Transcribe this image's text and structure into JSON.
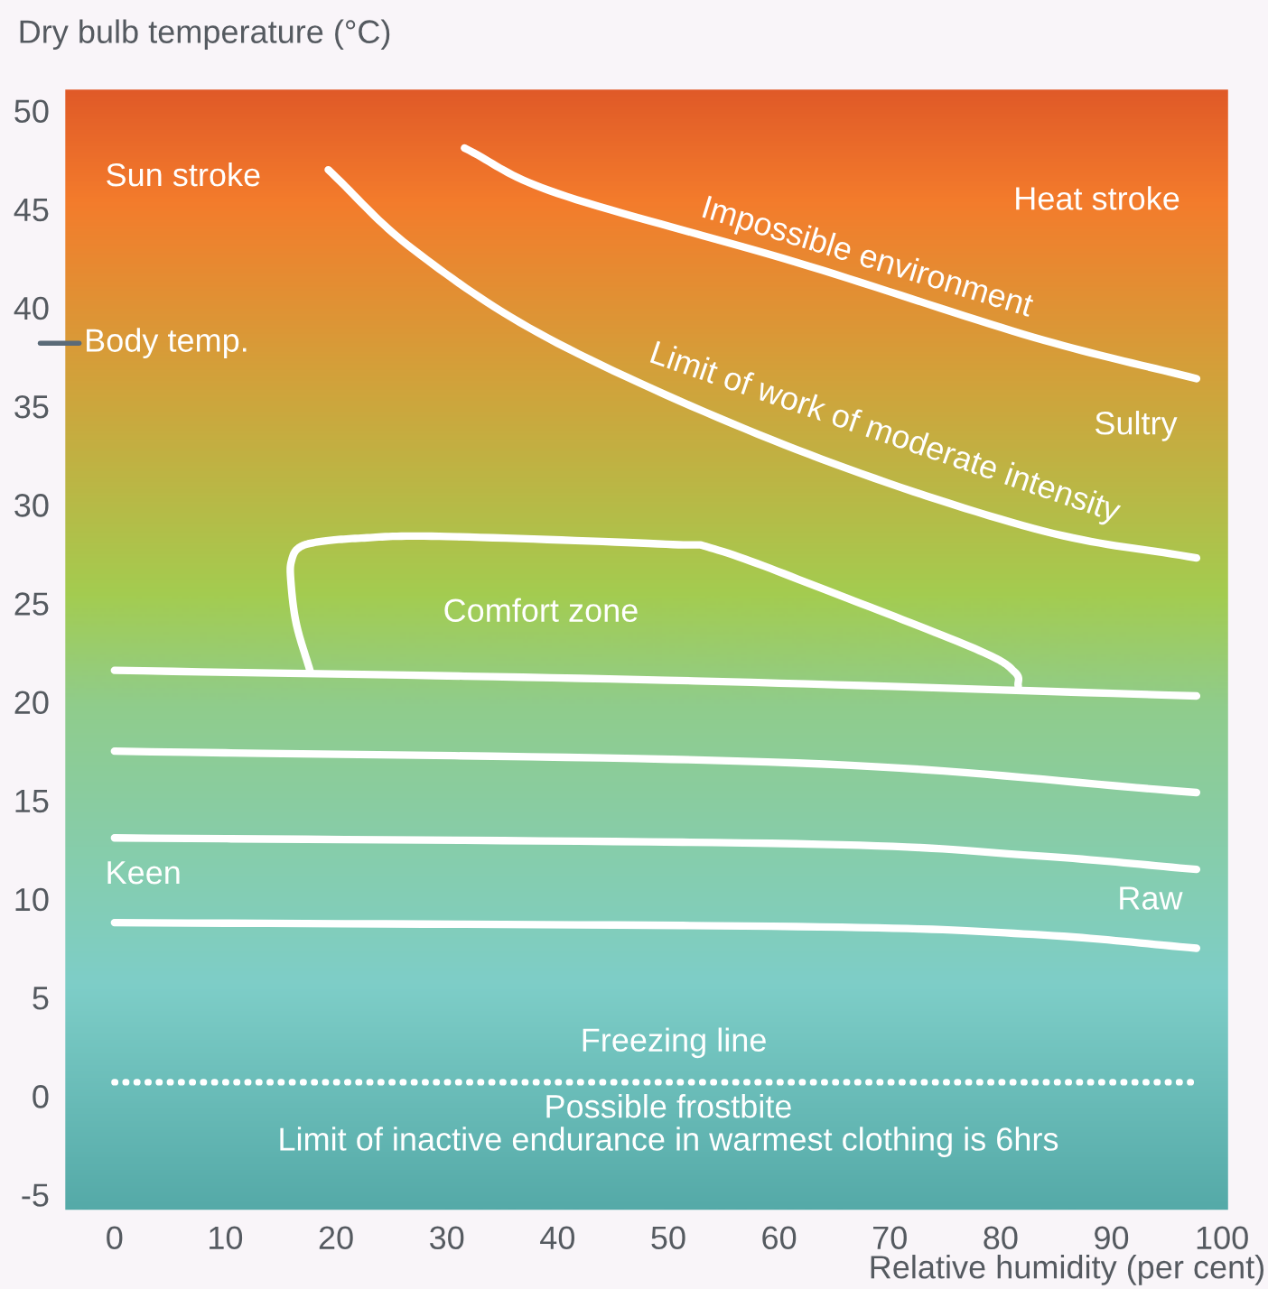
{
  "chart_data": {
    "type": "line",
    "xlabel": "Relative humidity (per cent)",
    "ylabel": "Dry bulb temperature (°C)",
    "xlim": [
      -4.5,
      100.6
    ],
    "ylim": [
      -5.8,
      51.1
    ],
    "xticks": [
      0,
      10,
      20,
      30,
      40,
      50,
      60,
      70,
      80,
      90,
      100
    ],
    "yticks": [
      -5,
      0,
      5,
      10,
      15,
      20,
      25,
      30,
      35,
      40,
      45,
      50
    ],
    "grid": false,
    "marker": "none",
    "series": [
      {
        "color": "#ffffff",
        "x": [
          31.6,
          40,
          61.6,
          83.0,
          97.7
        ],
        "values": [
          48.1,
          45.8,
          42.3,
          38.5,
          36.4
        ]
      },
      {
        "color": "#ffffff",
        "x": [
          19.3,
          27.1,
          40,
          61.6,
          83.0,
          97.7
        ],
        "values": [
          47.0,
          42.9,
          38.2,
          32.8,
          28.8,
          27.3
        ]
      },
      {
        "color": "#ffffff",
        "x": [
          17.7,
          16.4,
          15.9,
          16.0,
          16.6,
          18.2,
          22.0,
          29.3,
          49.8,
          54.5,
          65.5,
          78.1,
          81.3,
          81.6
        ],
        "values": [
          21.5,
          24.0,
          26.3,
          27.2,
          27.8,
          28.1,
          28.3,
          28.4,
          28.0,
          27.7,
          25.4,
          22.6,
          21.5,
          20.8
        ]
      },
      {
        "color": "#ffffff",
        "x": [
          0,
          49.8,
          97.7
        ],
        "values": [
          21.6,
          21.1,
          20.3
        ]
      },
      {
        "color": "#ffffff",
        "x": [
          0,
          61.6,
          97.7
        ],
        "values": [
          17.5,
          16.9,
          15.4
        ]
      },
      {
        "color": "#ffffff",
        "x": [
          0,
          61.6,
          83.0,
          97.7
        ],
        "values": [
          13.1,
          12.8,
          12.2,
          11.5
        ]
      },
      {
        "color": "#ffffff",
        "x": [
          0,
          61.6,
          83.0,
          97.7
        ],
        "values": [
          8.8,
          8.6,
          8.2,
          7.5
        ]
      },
      {
        "color": "#ffffff",
        "line_style": "dotted",
        "x": [
          0,
          97.7
        ],
        "values": [
          0.7,
          0.7
        ]
      }
    ],
    "annotations": [
      "Sun stroke",
      "Heat stroke",
      "Impossible environment",
      "Limit of work of moderate intensity",
      "Sultry",
      "Body temp.",
      "Comfort zone",
      "Keen",
      "Raw",
      "Freezing line",
      "Possible frostbite\nLimit of inactive endurance in warmest clothing is 6hrs"
    ]
  }
}
